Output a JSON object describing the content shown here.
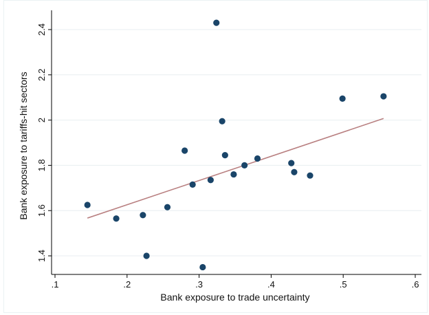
{
  "chart_data": {
    "type": "scatter",
    "xlabel": "Bank exposure to trade uncertainty",
    "ylabel": "Bank exposure to tariffs-hit sectors",
    "xlim": [
      0.1,
      0.6
    ],
    "ylim": [
      1.35,
      2.45
    ],
    "x_ticks": [
      0.1,
      0.2,
      0.3,
      0.4,
      0.5,
      0.6
    ],
    "x_tick_labels": [
      ".1",
      ".2",
      ".3",
      ".4",
      ".5",
      ".6"
    ],
    "y_ticks": [
      1.4,
      1.6,
      1.8,
      2.0,
      2.2,
      2.4
    ],
    "y_tick_labels": [
      "1.4",
      "1.6",
      "1.8",
      "2",
      "2.2",
      "2.4"
    ],
    "grid": true,
    "points": [
      {
        "x": 0.145,
        "y": 1.625
      },
      {
        "x": 0.185,
        "y": 1.565
      },
      {
        "x": 0.222,
        "y": 1.58
      },
      {
        "x": 0.227,
        "y": 1.4
      },
      {
        "x": 0.256,
        "y": 1.615
      },
      {
        "x": 0.28,
        "y": 1.865
      },
      {
        "x": 0.291,
        "y": 1.715
      },
      {
        "x": 0.305,
        "y": 1.35
      },
      {
        "x": 0.316,
        "y": 1.735
      },
      {
        "x": 0.324,
        "y": 2.43
      },
      {
        "x": 0.332,
        "y": 1.995
      },
      {
        "x": 0.336,
        "y": 1.845
      },
      {
        "x": 0.348,
        "y": 1.76
      },
      {
        "x": 0.363,
        "y": 1.8
      },
      {
        "x": 0.381,
        "y": 1.83
      },
      {
        "x": 0.428,
        "y": 1.81
      },
      {
        "x": 0.432,
        "y": 1.77
      },
      {
        "x": 0.454,
        "y": 1.755
      },
      {
        "x": 0.499,
        "y": 2.095
      },
      {
        "x": 0.556,
        "y": 2.105
      }
    ],
    "fit_line": {
      "x": [
        0.145,
        0.556
      ],
      "y": [
        1.567,
        2.007
      ]
    },
    "colors": {
      "points": "#1a4569",
      "fit_line": "#b98081",
      "grid": "#e8eef0",
      "axis": "#000000"
    }
  }
}
